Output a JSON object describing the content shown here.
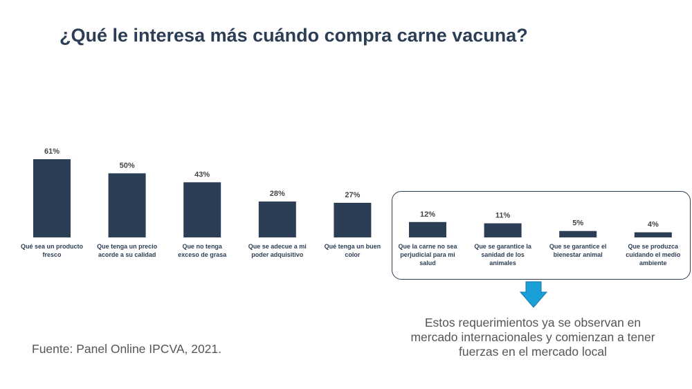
{
  "colors": {
    "bar": "#2c3e55",
    "arrow": "#1a9fd8",
    "title": "#2c3e55",
    "text": "#555555"
  },
  "chart_data": {
    "type": "bar",
    "title": "¿Qué le interesa más cuándo compra carne vacuna?",
    "xlabel": "",
    "ylabel": "",
    "ylim": [
      0,
      61
    ],
    "categories": [
      [
        "Qué sea un producto",
        "fresco"
      ],
      [
        "Que tenga un precio",
        "acorde a su calidad"
      ],
      [
        "Que no tenga",
        "exceso de grasa"
      ],
      [
        "Que se adecue a mi",
        "poder adquisitivo"
      ],
      [
        "Qué tenga un buen",
        "color"
      ],
      [
        "Que la carne no sea",
        "perjudicial para mi",
        "salud"
      ],
      [
        "Que se garantice la",
        "sanidad de los",
        "animales"
      ],
      [
        "Que se garantice el",
        "bienestar animal"
      ],
      [
        "Que se produzca",
        "cuidando el medio",
        "ambiente"
      ]
    ],
    "values": [
      61,
      50,
      43,
      28,
      27,
      12,
      11,
      5,
      4
    ],
    "value_labels": [
      "61%",
      "50%",
      "43%",
      "28%",
      "27%",
      "12%",
      "11%",
      "5%",
      "4%"
    ],
    "highlighted_group": "last four categories"
  },
  "footer": {
    "note_lines": [
      "Estos requerimientos ya se observan en",
      "mercado internacionales y comienzan a tener",
      "fuerzas en el mercado local"
    ],
    "source": "Fuente: Panel Online IPCVA, 2021."
  }
}
